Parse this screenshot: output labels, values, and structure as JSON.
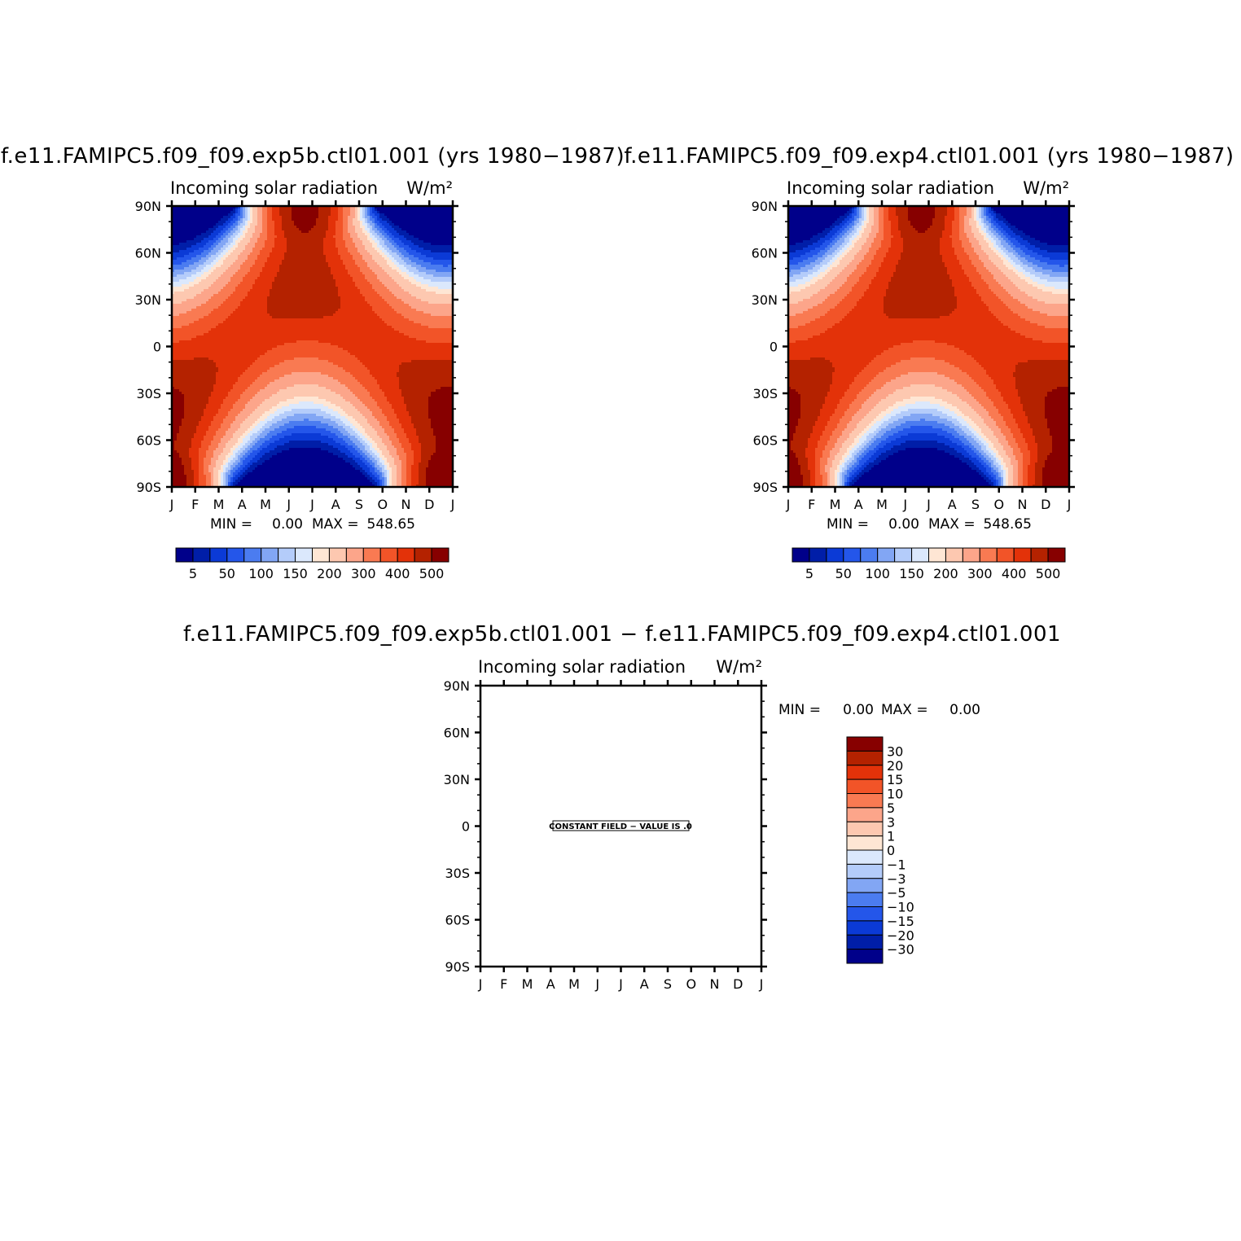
{
  "colors": {
    "fsnt_palette": [
      "#00008a",
      "#001ea8",
      "#0b3ad6",
      "#2456ea",
      "#4b7cf0",
      "#82a6f4",
      "#b4ccfa",
      "#dbe8fc",
      "#fee6d4",
      "#fdc8b0",
      "#fca58a",
      "#f97a52",
      "#f25428",
      "#e33209",
      "#b42200",
      "#870000"
    ],
    "diff_palette": [
      "#870000",
      "#b42200",
      "#e33209",
      "#f25428",
      "#f97a52",
      "#fca58a",
      "#fdc8b0",
      "#fee6d4",
      "#dbe8fc",
      "#b4ccfa",
      "#82a6f4",
      "#4b7cf0",
      "#2456ea",
      "#0b3ad6",
      "#001ea8",
      "#00008a"
    ]
  },
  "chart_data": [
    {
      "type": "heatmap",
      "panel": "upper-left",
      "title": "f.e11.FAMIPC5.f09_f09.exp5b.ctl01.001 (yrs 1980−1987)",
      "subtitle_left": "Incoming solar radiation",
      "subtitle_right": "W/m²",
      "x_ticks": [
        "J",
        "F",
        "M",
        "A",
        "M",
        "J",
        "J",
        "A",
        "S",
        "O",
        "N",
        "D",
        "J"
      ],
      "y_ticks": [
        "90N",
        "60N",
        "30N",
        "0",
        "30S",
        "60S",
        "90S"
      ],
      "min_label": "MIN =",
      "min_value": "0.00",
      "max_label": "MAX =",
      "max_value": "548.65",
      "colorbar_labels": [
        "5",
        "50",
        "100",
        "150",
        "200",
        "300",
        "400",
        "500"
      ],
      "contour_levels": [
        5,
        25,
        50,
        75,
        100,
        125,
        150,
        175,
        200,
        250,
        300,
        350,
        400,
        450,
        500
      ]
    },
    {
      "type": "heatmap",
      "panel": "upper-right",
      "title": "f.e11.FAMIPC5.f09_f09.exp4.ctl01.001 (yrs 1980−1987)",
      "subtitle_left": "Incoming solar radiation",
      "subtitle_right": "W/m²",
      "x_ticks": [
        "J",
        "F",
        "M",
        "A",
        "M",
        "J",
        "J",
        "A",
        "S",
        "O",
        "N",
        "D",
        "J"
      ],
      "y_ticks": [
        "90N",
        "60N",
        "30N",
        "0",
        "30S",
        "60S",
        "90S"
      ],
      "min_label": "MIN =",
      "min_value": "0.00",
      "max_label": "MAX =",
      "max_value": "548.65",
      "colorbar_labels": [
        "5",
        "50",
        "100",
        "150",
        "200",
        "300",
        "400",
        "500"
      ],
      "contour_levels": [
        5,
        25,
        50,
        75,
        100,
        125,
        150,
        175,
        200,
        250,
        300,
        350,
        400,
        450,
        500
      ]
    },
    {
      "type": "heatmap",
      "panel": "difference",
      "title": "f.e11.FAMIPC5.f09_f09.exp5b.ctl01.001 − f.e11.FAMIPC5.f09_f09.exp4.ctl01.001",
      "subtitle_left": "Incoming solar radiation",
      "subtitle_right": "W/m²",
      "x_ticks": [
        "J",
        "F",
        "M",
        "A",
        "M",
        "J",
        "J",
        "A",
        "S",
        "O",
        "N",
        "D",
        "J"
      ],
      "y_ticks": [
        "90N",
        "60N",
        "30N",
        "0",
        "30S",
        "60S",
        "90S"
      ],
      "min_label": "MIN =",
      "min_value": "0.00",
      "max_label": "MAX =",
      "max_value": "0.00",
      "constant_field_label": "CONSTANT FIELD − VALUE IS .0",
      "colorbar_labels": [
        "30",
        "20",
        "15",
        "10",
        "5",
        "3",
        "1",
        "0",
        "−1",
        "−3",
        "−5",
        "−10",
        "−15",
        "−20",
        "−30"
      ]
    }
  ]
}
